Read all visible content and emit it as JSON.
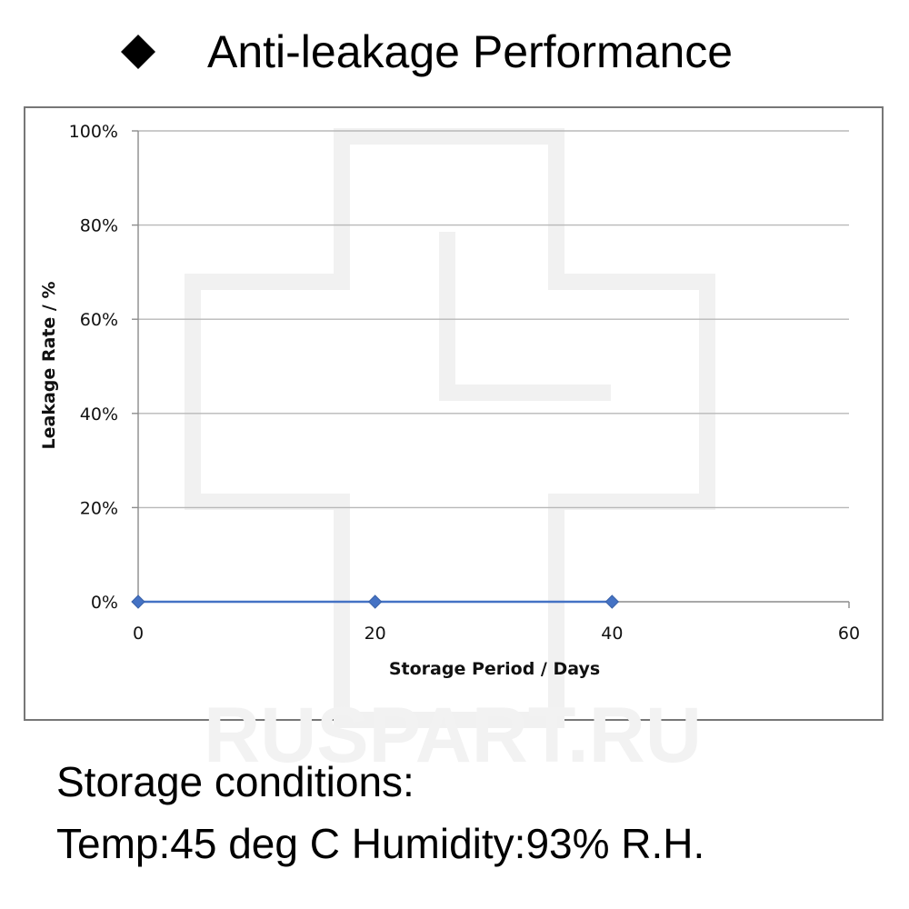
{
  "title": {
    "bullet_icon": "diamond-bullet-icon",
    "text": "Anti-leakage Performance"
  },
  "watermark": {
    "text": "RUSPART.RU",
    "logo_icon": "cross-logo-watermark"
  },
  "chart_data": {
    "type": "line",
    "xlabel": "Storage Period / Days",
    "ylabel": "Leakage Rate / %",
    "x_ticks": [
      "0",
      "20",
      "40",
      "60"
    ],
    "y_ticks": [
      "0%",
      "20%",
      "40%",
      "60%",
      "80%",
      "100%"
    ],
    "xlim": [
      0,
      60
    ],
    "ylim": [
      0,
      100
    ],
    "grid": "horizontal",
    "series": [
      {
        "x": [
          0,
          20,
          40
        ],
        "y": [
          0,
          0,
          0
        ],
        "color": "#4472C4",
        "marker": "diamond"
      }
    ]
  },
  "footer": {
    "line1": "Storage conditions:",
    "line2": "Temp:45 deg C   Humidity:93% R.H."
  }
}
